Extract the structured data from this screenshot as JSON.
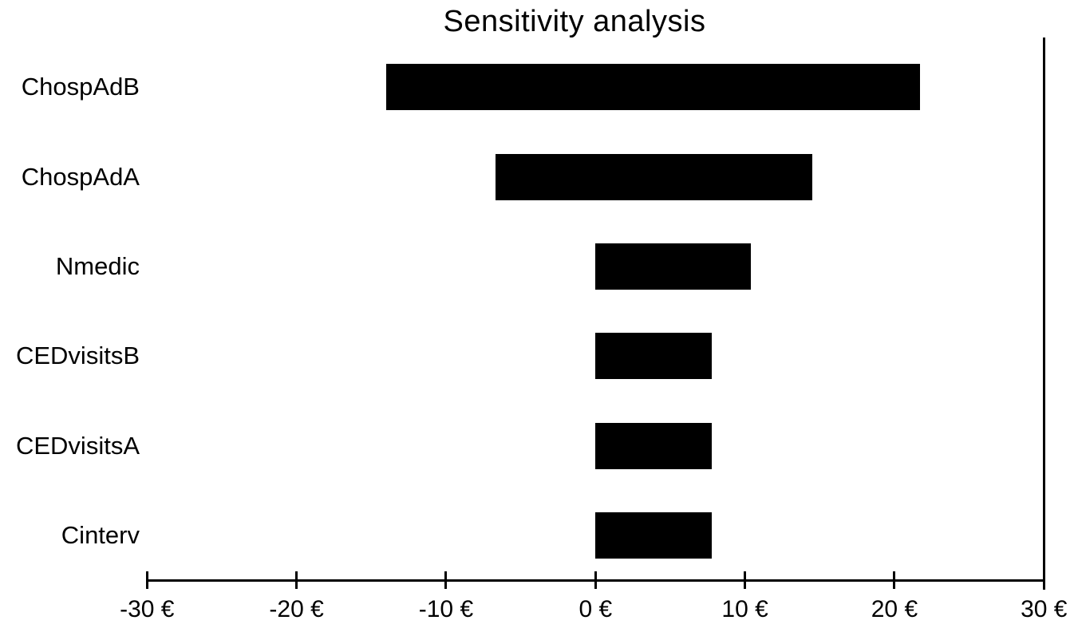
{
  "title": "Sensitivity analysis",
  "colors": {
    "bar": "#000000",
    "axis": "#000000",
    "text": "#000000",
    "background": "#ffffff"
  },
  "chart_data": {
    "type": "bar",
    "orientation": "horizontal",
    "subtype": "tornado",
    "title": "Sensitivity analysis",
    "categories": [
      "ChospAdB",
      "ChospAdA",
      "Nmedic",
      "CEDvisitsB",
      "CEDvisitsA",
      "Cinterv"
    ],
    "ranges": [
      {
        "label": "ChospAdB",
        "low": -14.0,
        "high": 21.7
      },
      {
        "label": "ChospAdA",
        "low": -6.7,
        "high": 14.5
      },
      {
        "label": "Nmedic",
        "low": 0,
        "high": 10.4
      },
      {
        "label": "CEDvisitsB",
        "low": 0,
        "high": 7.8
      },
      {
        "label": "CEDvisitsA",
        "low": 0,
        "high": 7.8
      },
      {
        "label": "Cinterv",
        "low": 0,
        "high": 7.8
      }
    ],
    "xlabel": "",
    "ylabel": "",
    "xlim": [
      -30,
      30
    ],
    "x_ticks": [
      -30,
      -20,
      -10,
      0,
      10,
      20,
      30
    ],
    "x_tick_labels": [
      "-30 €",
      "-20 €",
      "-10 €",
      "0 €",
      "10 €",
      "20 €",
      "30 €"
    ],
    "grid": false,
    "legend": null
  }
}
